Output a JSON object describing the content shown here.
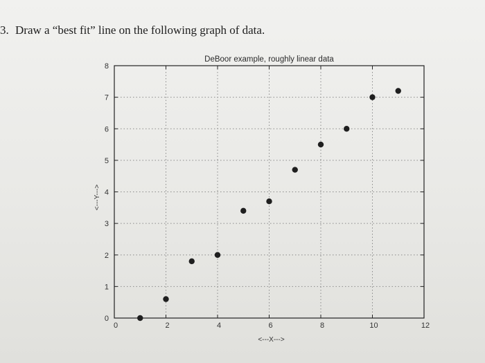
{
  "question": {
    "number": "3.",
    "text": "Draw a “best fit” line on the following graph of data."
  },
  "chart_data": {
    "type": "scatter",
    "title": "DeBoor example, roughly linear data",
    "xlabel": "<---X--->",
    "ylabel": "<---Y--->",
    "xlim": [
      0,
      12
    ],
    "ylim": [
      0,
      8
    ],
    "xticks": [
      0,
      2,
      4,
      6,
      8,
      10,
      12
    ],
    "yticks": [
      0,
      1,
      2,
      3,
      4,
      5,
      6,
      7,
      8
    ],
    "grid": true,
    "series": [
      {
        "points": [
          [
            1,
            0
          ],
          [
            2,
            0.6
          ],
          [
            3,
            1.8
          ],
          [
            4,
            2.0
          ],
          [
            5,
            3.4
          ],
          [
            6,
            3.7
          ],
          [
            7,
            4.7
          ],
          [
            8,
            5.5
          ],
          [
            9,
            6.0
          ],
          [
            10,
            7.0
          ],
          [
            11,
            7.2
          ]
        ]
      }
    ],
    "colors": {
      "marker": "#1f1f1f",
      "grid": "#8a8a8a",
      "axis": "#222222"
    }
  }
}
